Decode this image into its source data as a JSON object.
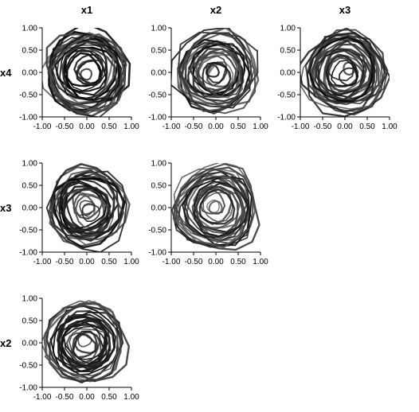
{
  "chart_data": {
    "type": "line",
    "layout": "scatterplot-matrix (upper triangle)",
    "column_titles": [
      "x1",
      "x2",
      "x3"
    ],
    "row_titles": [
      "x4",
      "x3",
      "x2"
    ],
    "xlim": [
      -1.0,
      1.0
    ],
    "ylim": [
      -1.0,
      1.0
    ],
    "xticks": [
      "-1.00",
      "-0.50",
      "0.00",
      "0.50",
      "1.00"
    ],
    "yticks": [
      "1.00",
      "0.50",
      "0.00",
      "-0.50",
      "-1.00"
    ],
    "line_color": "#000000",
    "panels": [
      {
        "row": 0,
        "col": 0,
        "x_var": "x1",
        "y_var": "x4",
        "series": "dense circular trajectory, radius up to ~0.90, centered near (0, 0)"
      },
      {
        "row": 0,
        "col": 1,
        "x_var": "x2",
        "y_var": "x4",
        "series": "dense circular trajectory, radius up to ~0.90, centered near (0, 0)"
      },
      {
        "row": 0,
        "col": 2,
        "x_var": "x3",
        "y_var": "x4",
        "series": "dense circular trajectory, radius up to ~0.95, centered near (0, 0)"
      },
      {
        "row": 1,
        "col": 0,
        "x_var": "x1",
        "y_var": "x3",
        "series": "dense circular trajectory, radius up to ~0.90, centered near (0, 0)"
      },
      {
        "row": 1,
        "col": 1,
        "x_var": "x2",
        "y_var": "x3",
        "series": "dense circular trajectory, radius up to ~0.90, centered near (0, 0)"
      },
      {
        "row": 2,
        "col": 0,
        "x_var": "x1",
        "y_var": "x2",
        "series": "dense circular trajectory, radius up to ~0.90, centered near (0, 0)"
      }
    ]
  }
}
